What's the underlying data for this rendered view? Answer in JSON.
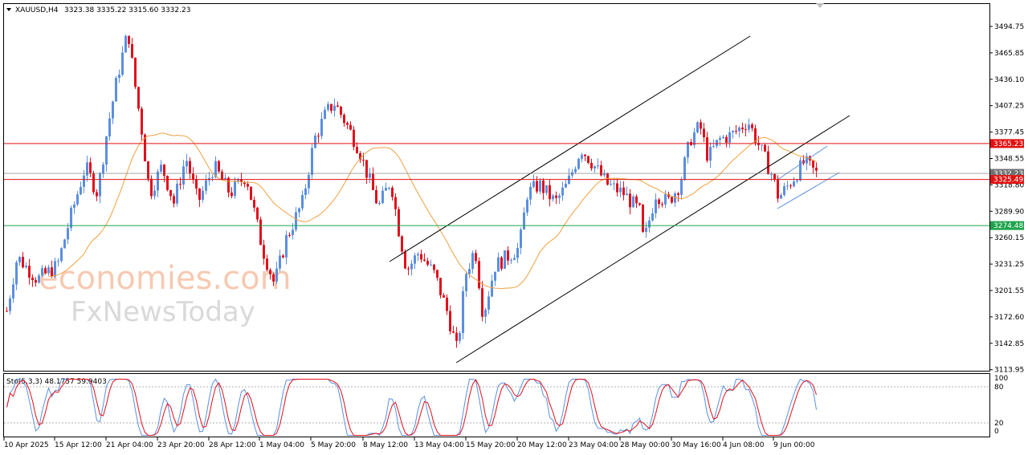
{
  "header": {
    "symbol": "XAUUSD,H4",
    "ohlc": "3323.38 3335.22 3315.60 3332.23"
  },
  "watermark": {
    "line1": "economies.com",
    "line2": "FxNewsToday"
  },
  "price_axis": {
    "ticks": [
      "3494.75",
      "3465.85",
      "3436.10",
      "3407.25",
      "3377.45",
      "3348.55",
      "3318.80",
      "3289.90",
      "3260.15",
      "3231.25",
      "3201.55",
      "3172.60",
      "3142.85",
      "3113.95"
    ]
  },
  "osc_axis": {
    "ticks": [
      "100",
      "80",
      "20",
      "0"
    ]
  },
  "osc_label": "Sto(5,3,3) 48.1757 59.9403",
  "time_axis": {
    "ticks": [
      "10 Apr 2025",
      "15 Apr 12:00",
      "21 Apr 04:00",
      "23 Apr 20:00",
      "28 Apr 12:00",
      "1 May 04:00",
      "5 May 20:00",
      "8 May 12:00",
      "13 May 04:00",
      "15 May 20:00",
      "20 May 12:00",
      "23 May 04:00",
      "28 May 00:00",
      "30 May 16:00",
      "4 Jun 08:00",
      "9 Jun 00:00"
    ]
  },
  "levels": {
    "resistance": {
      "label": "3365.23",
      "value": 3365.23,
      "color": "#e01010"
    },
    "current": {
      "label": "3332.23",
      "value": 3332.23,
      "color": "#707070"
    },
    "support1": {
      "label": "3325.49",
      "value": 3325.49,
      "color": "#e01010"
    },
    "support2": {
      "label": "3274.48",
      "value": 3274.48,
      "color": "#1ea34a"
    }
  },
  "colors": {
    "bull": "#5b8fe0",
    "bear": "#e0101c",
    "ma": "#f0a040",
    "sto_main": "#5b8fe0",
    "sto_signal": "#e0101c"
  },
  "chart_data": {
    "type": "candlestick",
    "ylim": [
      3113.95,
      3504
    ],
    "key_closes": [
      [
        "10 Apr 2025",
        3180
      ],
      [
        "15 Apr 12:00",
        3320
      ],
      [
        "21 Apr 04:00",
        3480
      ],
      [
        "23 Apr 20:00",
        3320
      ],
      [
        "28 Apr 12:00",
        3320
      ],
      [
        "1 May 04:00",
        3225
      ],
      [
        "5 May 20:00",
        3395
      ],
      [
        "8 May 12:00",
        3320
      ],
      [
        "13 May 04:00",
        3240
      ],
      [
        "15 May 20:00",
        3200
      ],
      [
        "20 May 12:00",
        3290
      ],
      [
        "23 May 04:00",
        3350
      ],
      [
        "28 May 00:00",
        3260
      ],
      [
        "30 May 16:00",
        3370
      ],
      [
        "4 Jun 08:00",
        3380
      ],
      [
        "9 Jun 00:00",
        3320
      ]
    ],
    "stochastic": {
      "k": 48.1757,
      "d": 59.9403,
      "levels": [
        80,
        20
      ]
    }
  }
}
